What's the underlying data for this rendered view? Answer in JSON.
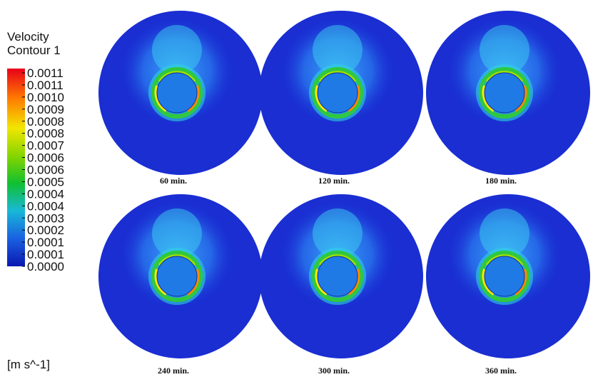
{
  "legend": {
    "title": "Velocity",
    "subtitle": "Contour 1",
    "labels": [
      "0.0011",
      "0.0011",
      "0.0010",
      "0.0009",
      "0.0008",
      "0.0008",
      "0.0007",
      "0.0006",
      "0.0006",
      "0.0005",
      "0.0004",
      "0.0004",
      "0.0003",
      "0.0002",
      "0.0001",
      "0.0001",
      "0.0000"
    ],
    "unit": "[m s^-1]"
  },
  "panels": [
    {
      "caption": "60 min."
    },
    {
      "caption": "120 min."
    },
    {
      "caption": "180 min."
    },
    {
      "caption": "240 min."
    },
    {
      "caption": "300 min."
    },
    {
      "caption": "360 min."
    }
  ]
}
